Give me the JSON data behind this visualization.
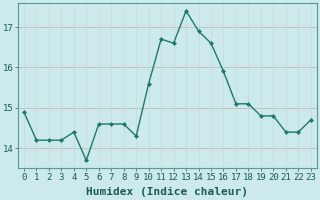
{
  "x": [
    0,
    1,
    2,
    3,
    4,
    5,
    6,
    7,
    8,
    9,
    10,
    11,
    12,
    13,
    14,
    15,
    16,
    17,
    18,
    19,
    20,
    21,
    22,
    23
  ],
  "y": [
    14.9,
    14.2,
    14.2,
    14.2,
    14.4,
    13.7,
    14.6,
    14.6,
    14.6,
    14.3,
    15.6,
    16.7,
    16.6,
    17.4,
    16.9,
    16.6,
    15.9,
    15.1,
    15.1,
    14.8,
    14.8,
    14.4,
    14.4,
    14.7
  ],
  "line_color": "#1a7a6e",
  "marker": "D",
  "marker_size": 2,
  "bg_color": "#cce9eb",
  "grid_h_color": "#c8b8b8",
  "grid_v_color": "#c8d8d8",
  "xlabel": "Humidex (Indice chaleur)",
  "xlim": [
    -0.5,
    23.5
  ],
  "ylim": [
    13.5,
    17.6
  ],
  "yticks": [
    14,
    15,
    16,
    17
  ],
  "xticks": [
    0,
    1,
    2,
    3,
    4,
    5,
    6,
    7,
    8,
    9,
    10,
    11,
    12,
    13,
    14,
    15,
    16,
    17,
    18,
    19,
    20,
    21,
    22,
    23
  ],
  "xtick_labels": [
    "0",
    "1",
    "2",
    "3",
    "4",
    "5",
    "6",
    "7",
    "8",
    "9",
    "10",
    "11",
    "12",
    "13",
    "14",
    "15",
    "16",
    "17",
    "18",
    "19",
    "20",
    "21",
    "22",
    "23"
  ],
  "tick_fontsize": 6.5,
  "label_fontsize": 8,
  "spine_color": "#5a9a9a"
}
